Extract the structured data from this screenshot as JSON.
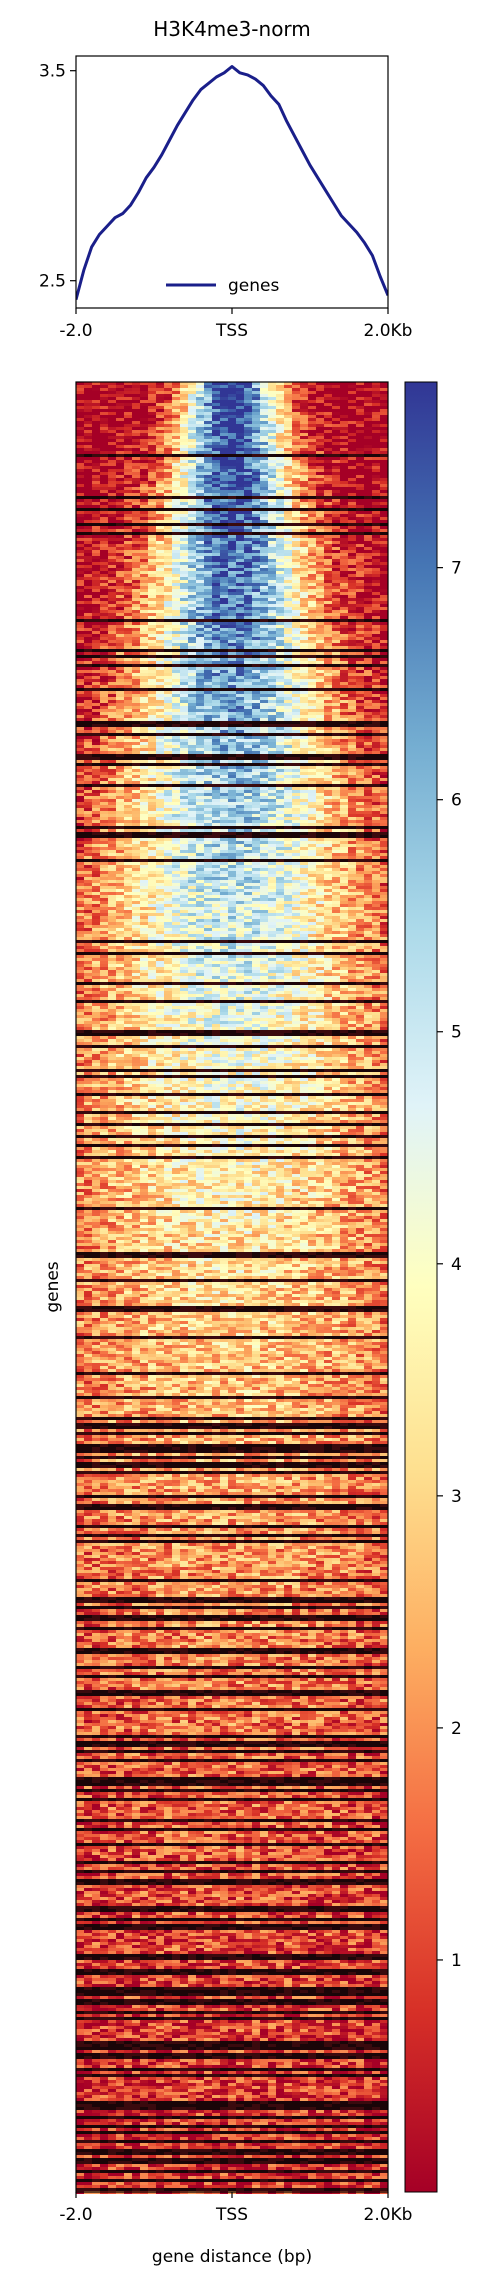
{
  "chart_data": [
    {
      "type": "line",
      "title": "H3K4me3-norm",
      "xlabel": "",
      "ylabel": "",
      "x_tick_labels": [
        "-2.0",
        "TSS",
        "2.0Kb"
      ],
      "y_ticks": [
        2.5,
        3.5
      ],
      "y_tick_labels": [
        "2.5",
        "3.5"
      ],
      "ylim": [
        2.37,
        3.57
      ],
      "xlim": [
        -2000,
        2000
      ],
      "grid": false,
      "legend_position": "bottom-center",
      "series": [
        {
          "name": "genes",
          "color": "#1a1f8a",
          "x": [
            -2000,
            -1900,
            -1800,
            -1700,
            -1600,
            -1500,
            -1400,
            -1300,
            -1200,
            -1100,
            -1000,
            -900,
            -800,
            -700,
            -600,
            -500,
            -400,
            -300,
            -200,
            -100,
            0,
            100,
            200,
            300,
            400,
            500,
            600,
            700,
            800,
            900,
            1000,
            1100,
            1200,
            1300,
            1400,
            1500,
            1600,
            1700,
            1800,
            1900,
            2000
          ],
          "y": [
            2.41,
            2.55,
            2.66,
            2.72,
            2.76,
            2.8,
            2.82,
            2.86,
            2.92,
            2.99,
            3.04,
            3.1,
            3.17,
            3.24,
            3.3,
            3.36,
            3.41,
            3.44,
            3.47,
            3.49,
            3.52,
            3.49,
            3.48,
            3.46,
            3.43,
            3.38,
            3.34,
            3.26,
            3.19,
            3.12,
            3.05,
            2.99,
            2.93,
            2.87,
            2.81,
            2.77,
            2.73,
            2.68,
            2.62,
            2.52,
            2.43
          ]
        }
      ]
    },
    {
      "type": "heatmap",
      "xlabel": "gene distance (bp)",
      "ylabel": "genes",
      "x_tick_labels": [
        "-2.0",
        "TSS",
        "2.0Kb"
      ],
      "colormap": "RdYlBu",
      "colorbar_range": [
        0,
        7.8
      ],
      "colorbar_ticks": [
        1,
        2,
        3,
        4,
        5,
        6,
        7
      ],
      "colorbar_tick_labels": [
        "1",
        "2",
        "3",
        "4",
        "5",
        "6",
        "7"
      ],
      "colorbar_stops": [
        "#a50026",
        "#d73027",
        "#f46d43",
        "#fdae61",
        "#fee090",
        "#ffffbf",
        "#e0f3f8",
        "#abd9e9",
        "#74add1",
        "#4575b4",
        "#313695"
      ]
    }
  ]
}
